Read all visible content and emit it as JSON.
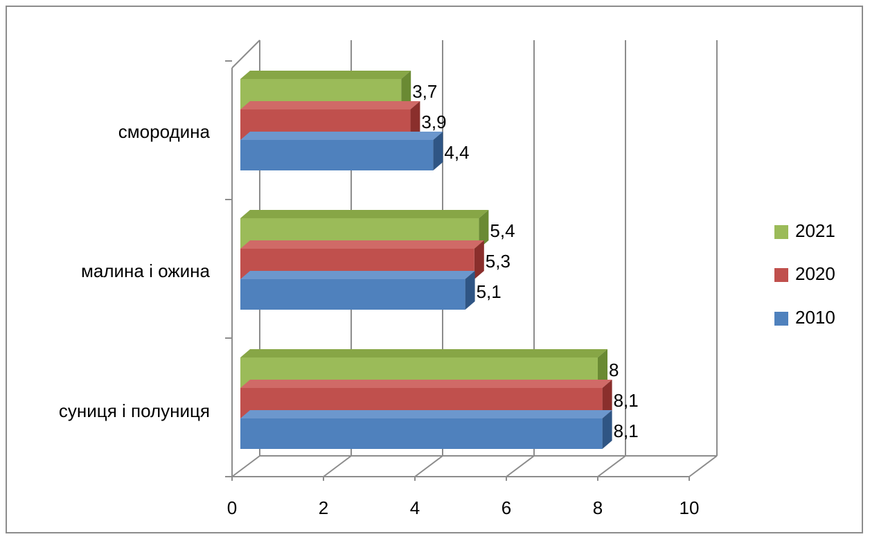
{
  "chart_data": {
    "type": "bar",
    "orientation": "horizontal",
    "style": "3d-clustered",
    "categories": [
      "суниця і полуниця",
      "малина і ожина",
      "смородина"
    ],
    "series": [
      {
        "name": "2010",
        "values": [
          8.1,
          5.1,
          4.4
        ],
        "labels": [
          "8,1",
          "5,1",
          "4,4"
        ]
      },
      {
        "name": "2020",
        "values": [
          8.1,
          5.3,
          3.9
        ],
        "labels": [
          "8,1",
          "5,3",
          "3,9"
        ]
      },
      {
        "name": "2021",
        "values": [
          8,
          5.4,
          3.7
        ],
        "labels": [
          "8",
          "5,4",
          "3,7"
        ]
      }
    ],
    "xlim": [
      0,
      10
    ],
    "xticks": [
      "0",
      "2",
      "4",
      "6",
      "8",
      "10"
    ],
    "grid": true,
    "legend_position": "right",
    "legend_order": [
      "2021",
      "2020",
      "2010"
    ]
  },
  "colors": {
    "2010": {
      "front": "#4f81bd",
      "top": "#6c97cd",
      "side": "#2f5584"
    },
    "2020": {
      "front": "#c0504d",
      "top": "#d06a67",
      "side": "#8a2f2c"
    },
    "2021": {
      "front": "#9bbb59",
      "top": "#87a646",
      "side": "#6a8a33"
    },
    "grid": "#8c8c8c"
  }
}
